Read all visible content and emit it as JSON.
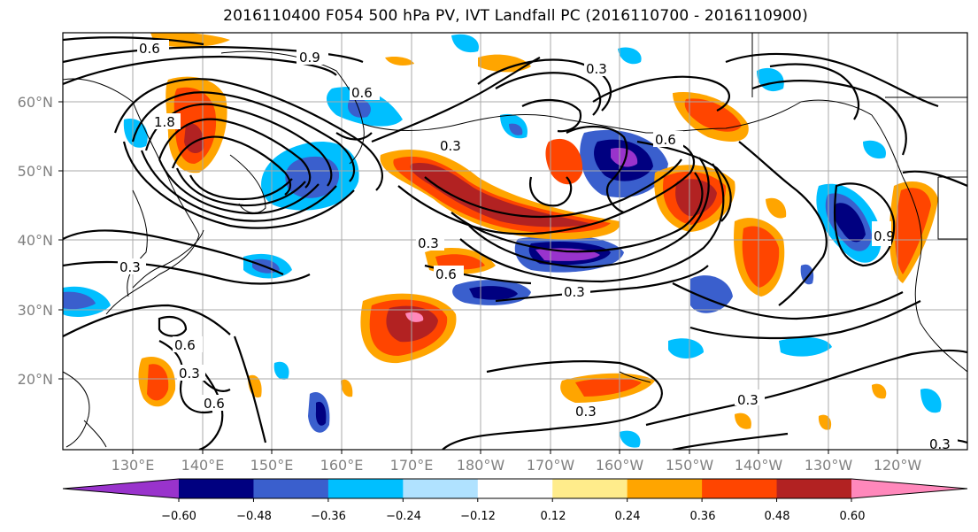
{
  "title": "2016110400 F054 500 hPa PV, IVT Landfall PC (2016110700 - 2016110900)",
  "map": {
    "lat_labels": [
      "60°N",
      "50°N",
      "40°N",
      "30°N",
      "20°N"
    ],
    "lon_labels": [
      "130°E",
      "140°E",
      "150°E",
      "160°E",
      "170°E",
      "180°W",
      "170°W",
      "160°W",
      "150°W",
      "140°W",
      "130°W",
      "120°W"
    ],
    "contour_labels": [
      "0.6",
      "0.9",
      "0.6",
      "1.8",
      "0.3",
      "0.3",
      "0.3",
      "0.6",
      "0.3",
      "0.6",
      "0.3",
      "0.6",
      "0.3",
      "0.6",
      "0.3",
      "0.3",
      "0.9",
      "0.3"
    ]
  },
  "colorbar": {
    "tick_labels": [
      "−0.60",
      "−0.48",
      "−0.36",
      "−0.24",
      "−0.12",
      "0.12",
      "0.24",
      "0.36",
      "0.48",
      "0.60"
    ],
    "colors": [
      "#9933cc",
      "#000080",
      "#3a5fcd",
      "#00bfff",
      "#b0e2ff",
      "#ffffff",
      "#ffec8b",
      "#ffa500",
      "#ff4500",
      "#b22222",
      "#ff88bb"
    ]
  }
}
